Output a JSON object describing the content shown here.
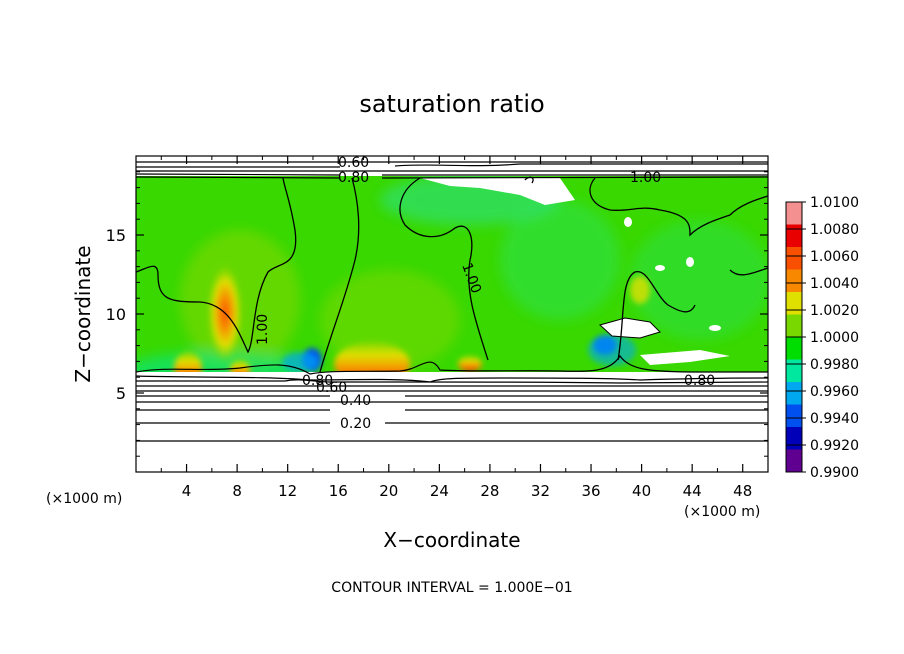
{
  "chart_data": {
    "type": "heatmap",
    "title": "saturation ratio",
    "xlabel": "X−coordinate",
    "ylabel": "Z−coordinate",
    "x_unit_left": "(×1000 m)",
    "x_unit_right": "(×1000 m)",
    "footer": "CONTOUR INTERVAL = 1.000E−01",
    "xlim": [
      0,
      50
    ],
    "ylim": [
      0,
      20
    ],
    "x_ticks": [
      "4",
      "8",
      "12",
      "16",
      "20",
      "24",
      "28",
      "32",
      "36",
      "40",
      "44",
      "48"
    ],
    "x_tick_values": [
      4,
      8,
      12,
      16,
      20,
      24,
      28,
      32,
      36,
      40,
      44,
      48
    ],
    "y_ticks": [
      "5",
      "10",
      "15"
    ],
    "y_tick_values": [
      5,
      10,
      15
    ],
    "colorbar": {
      "labels": [
        "1.0100",
        "1.0080",
        "1.0060",
        "1.0040",
        "1.0020",
        "1.0000",
        "0.9980",
        "0.9960",
        "0.9940",
        "0.9920",
        "0.9900"
      ],
      "values": [
        1.01,
        1.008,
        1.006,
        1.004,
        1.002,
        1.0,
        0.998,
        0.996,
        0.994,
        0.992,
        0.99
      ],
      "colors": [
        "#f49090",
        "#e80000",
        "#f85000",
        "#f88800",
        "#e0e000",
        "#78d800",
        "#00dd00",
        "#00e8a0",
        "#00a8f0",
        "#0050f0",
        "#0000b8",
        "#600090"
      ]
    },
    "contour_labels": [
      {
        "text": "0.60",
        "x": 14.2,
        "y": 19.4
      },
      {
        "text": "0.80",
        "x": 14.2,
        "y": 18.6
      },
      {
        "text": "1.00",
        "x": 31.8,
        "y": 18.5
      },
      {
        "text": "1.00",
        "x": 9.8,
        "y": 9.4
      },
      {
        "text": "1.00",
        "x": 21.3,
        "y": 11.8
      },
      {
        "text": "0.80",
        "x": 11.8,
        "y": 5.7
      },
      {
        "text": "0.60",
        "x": 11.6,
        "y": 5.2
      },
      {
        "text": "0.80",
        "x": 43.9,
        "y": 5.8
      },
      {
        "text": "0.40",
        "x": 14.3,
        "y": 4.4
      },
      {
        "text": "0.20",
        "x": 14.3,
        "y": 3.1
      }
    ],
    "contour_levels": [
      0.2,
      0.4,
      0.6,
      0.8,
      1.0
    ],
    "plotted_field_range_z": [
      6.5,
      18.5
    ]
  }
}
